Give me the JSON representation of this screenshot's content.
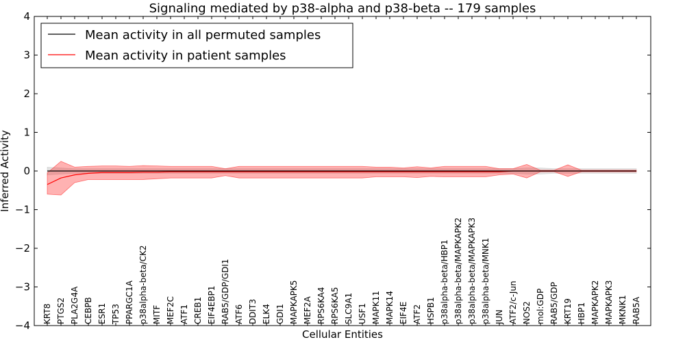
{
  "chart_data": {
    "type": "line",
    "title": "Signaling mediated by p38-alpha and p38-beta -- 179 samples",
    "xlabel": "Cellular Entities",
    "ylabel": "Inferred Activity",
    "ylim": [
      -4,
      4
    ],
    "yticks": [
      "−4",
      "−3",
      "−2",
      "−1",
      "0",
      "1",
      "2",
      "3",
      "4"
    ],
    "categories": [
      "KRT8",
      "PTGS2",
      "PLA2G4A",
      "CEBPB",
      "ESR1",
      "TP53",
      "PPARGC1A",
      "p38alpha-beta/CK2",
      "MITF",
      "MEF2C",
      "ATF1",
      "CREB1",
      "EIF4EBP1",
      "RAB5/GDP/GDI1",
      "ATF6",
      "DDIT3",
      "ELK4",
      "GDI1",
      "MAPKAPK5",
      "MEF2A",
      "RPS6KA4",
      "RPS6KA5",
      "SLC9A1",
      "USF1",
      "MAPK11",
      "MAPK14",
      "EIF4E",
      "ATF2",
      "HSPB1",
      "p38alpha-beta/HBP1",
      "p38alpha-beta/MAPKAPK2",
      "p38alpha-beta/MAPKAPK3",
      "p38alpha-beta/MNK1",
      "JUN",
      "ATF2/c-Jun",
      "NOS2",
      "mol:GDP",
      "RAB5/GDP",
      "KRT19",
      "HBP1",
      "MAPKAPK2",
      "MAPKAPK3",
      "MKNK1",
      "RAB5A"
    ],
    "series": [
      {
        "name": "Mean activity in all permuted samples",
        "color": "#000000",
        "fill_color": "#bfbfbf",
        "values": [
          0,
          0,
          0,
          0,
          0,
          0,
          0,
          0,
          0,
          0,
          0,
          0,
          0,
          0,
          0,
          0,
          0,
          0,
          0,
          0,
          0,
          0,
          0,
          0,
          0,
          0,
          0,
          0,
          0,
          0,
          0,
          0,
          0,
          0,
          0,
          0,
          0,
          0,
          0,
          0,
          0,
          0,
          0,
          0
        ],
        "upper": [
          0.1,
          0.08,
          0.06,
          0.06,
          0.06,
          0.06,
          0.06,
          0.06,
          0.06,
          0.06,
          0.06,
          0.06,
          0.06,
          0.06,
          0.06,
          0.06,
          0.06,
          0.06,
          0.06,
          0.06,
          0.06,
          0.06,
          0.06,
          0.06,
          0.06,
          0.06,
          0.06,
          0.06,
          0.06,
          0.06,
          0.06,
          0.06,
          0.06,
          0.06,
          0.06,
          0.08,
          0.08,
          0.06,
          0.06,
          0.06,
          0.06,
          0.06,
          0.06,
          0.06
        ],
        "lower": [
          -0.1,
          -0.08,
          -0.06,
          -0.06,
          -0.06,
          -0.06,
          -0.06,
          -0.06,
          -0.06,
          -0.06,
          -0.06,
          -0.06,
          -0.06,
          -0.06,
          -0.06,
          -0.06,
          -0.06,
          -0.06,
          -0.06,
          -0.06,
          -0.06,
          -0.06,
          -0.06,
          -0.06,
          -0.06,
          -0.06,
          -0.06,
          -0.06,
          -0.06,
          -0.06,
          -0.06,
          -0.06,
          -0.06,
          -0.06,
          -0.06,
          -0.08,
          -0.08,
          -0.06,
          -0.06,
          -0.06,
          -0.06,
          -0.06,
          -0.06,
          -0.06
        ]
      },
      {
        "name": "Mean activity in patient samples",
        "color": "#ff0000",
        "fill_color": "#ff0000",
        "values": [
          -0.35,
          -0.18,
          -0.1,
          -0.06,
          -0.04,
          -0.04,
          -0.04,
          -0.03,
          -0.03,
          -0.02,
          -0.02,
          -0.02,
          -0.02,
          -0.02,
          -0.02,
          -0.02,
          -0.02,
          -0.02,
          -0.02,
          -0.02,
          -0.02,
          -0.02,
          -0.02,
          -0.02,
          -0.02,
          -0.02,
          -0.02,
          -0.02,
          -0.02,
          -0.02,
          -0.02,
          -0.02,
          -0.02,
          -0.02,
          0.0,
          0.0,
          0.0,
          0.0,
          0.0,
          0.0,
          0.0,
          0.0,
          0.0,
          0.0
        ],
        "upper": [
          -0.05,
          0.25,
          0.1,
          0.12,
          0.13,
          0.13,
          0.12,
          0.14,
          0.13,
          0.12,
          0.12,
          0.12,
          0.12,
          0.06,
          0.12,
          0.12,
          0.12,
          0.12,
          0.12,
          0.12,
          0.12,
          0.12,
          0.12,
          0.12,
          0.1,
          0.1,
          0.08,
          0.11,
          0.08,
          0.12,
          0.12,
          0.12,
          0.12,
          0.06,
          0.06,
          0.17,
          0.02,
          0.02,
          0.16,
          0.02,
          0.02,
          0.02,
          0.02,
          0.02
        ],
        "lower": [
          -0.6,
          -0.62,
          -0.3,
          -0.22,
          -0.22,
          -0.22,
          -0.22,
          -0.22,
          -0.2,
          -0.18,
          -0.18,
          -0.18,
          -0.18,
          -0.12,
          -0.18,
          -0.18,
          -0.18,
          -0.18,
          -0.18,
          -0.18,
          -0.18,
          -0.18,
          -0.18,
          -0.18,
          -0.15,
          -0.15,
          -0.15,
          -0.17,
          -0.14,
          -0.15,
          -0.15,
          -0.15,
          -0.15,
          -0.1,
          -0.08,
          -0.18,
          -0.02,
          -0.02,
          -0.14,
          -0.02,
          -0.02,
          -0.02,
          -0.02,
          -0.02
        ]
      }
    ],
    "legend_position": "top-left",
    "grid": false
  }
}
